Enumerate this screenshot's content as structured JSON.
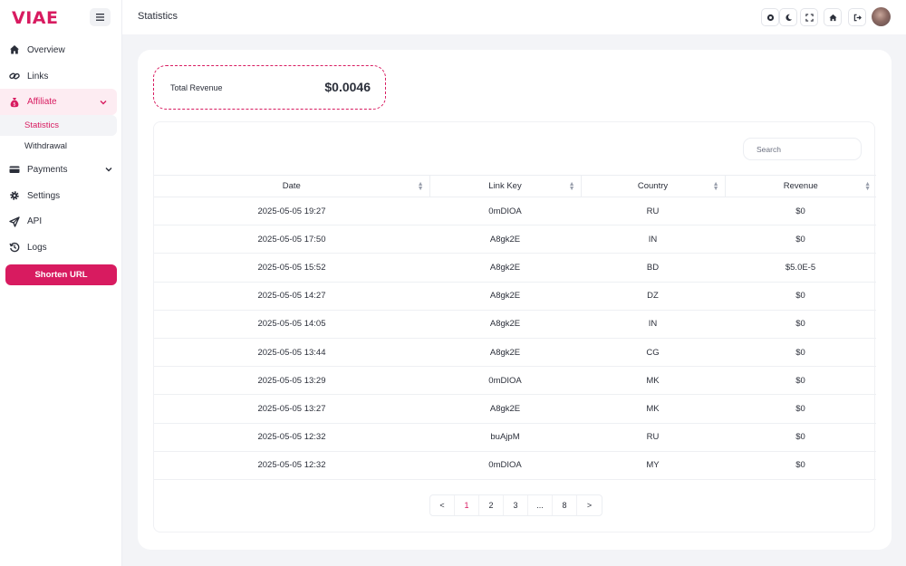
{
  "brand": {
    "logo": "VIAE",
    "accent": "#d81b60"
  },
  "sidebar": {
    "items": [
      {
        "label": "Overview",
        "icon": "home-icon"
      },
      {
        "label": "Links",
        "icon": "link-icon"
      },
      {
        "label": "Affiliate",
        "icon": "money-bag-icon",
        "expanded": true
      },
      {
        "label": "Payments",
        "icon": "credit-card-icon"
      },
      {
        "label": "Settings",
        "icon": "gear-icon"
      },
      {
        "label": "API",
        "icon": "send-icon"
      },
      {
        "label": "Logs",
        "icon": "history-icon"
      }
    ],
    "affiliate_sub": [
      {
        "label": "Statistics",
        "active": true
      },
      {
        "label": "Withdrawal",
        "active": false
      }
    ],
    "shorten_label": "Shorten URL"
  },
  "header": {
    "title": "Statistics"
  },
  "revenue": {
    "label": "Total Revenue",
    "value": "$0.0046"
  },
  "search": {
    "placeholder": "Search"
  },
  "table": {
    "columns": [
      "Date",
      "Link Key",
      "Country",
      "Revenue"
    ],
    "rows": [
      [
        "2025-05-05 19:27",
        "0mDIOA",
        "RU",
        "$0"
      ],
      [
        "2025-05-05 17:50",
        "A8gk2E",
        "IN",
        "$0"
      ],
      [
        "2025-05-05 15:52",
        "A8gk2E",
        "BD",
        "$5.0E-5"
      ],
      [
        "2025-05-05 14:27",
        "A8gk2E",
        "DZ",
        "$0"
      ],
      [
        "2025-05-05 14:05",
        "A8gk2E",
        "IN",
        "$0"
      ],
      [
        "2025-05-05 13:44",
        "A8gk2E",
        "CG",
        "$0"
      ],
      [
        "2025-05-05 13:29",
        "0mDIOA",
        "MK",
        "$0"
      ],
      [
        "2025-05-05 13:27",
        "A8gk2E",
        "MK",
        "$0"
      ],
      [
        "2025-05-05 12:32",
        "buAjpM",
        "RU",
        "$0"
      ],
      [
        "2025-05-05 12:32",
        "0mDIOA",
        "MY",
        "$0"
      ]
    ]
  },
  "pagination": {
    "prev": "<",
    "pages": [
      "1",
      "2",
      "3",
      "...",
      "8"
    ],
    "next": ">",
    "current": "1"
  }
}
